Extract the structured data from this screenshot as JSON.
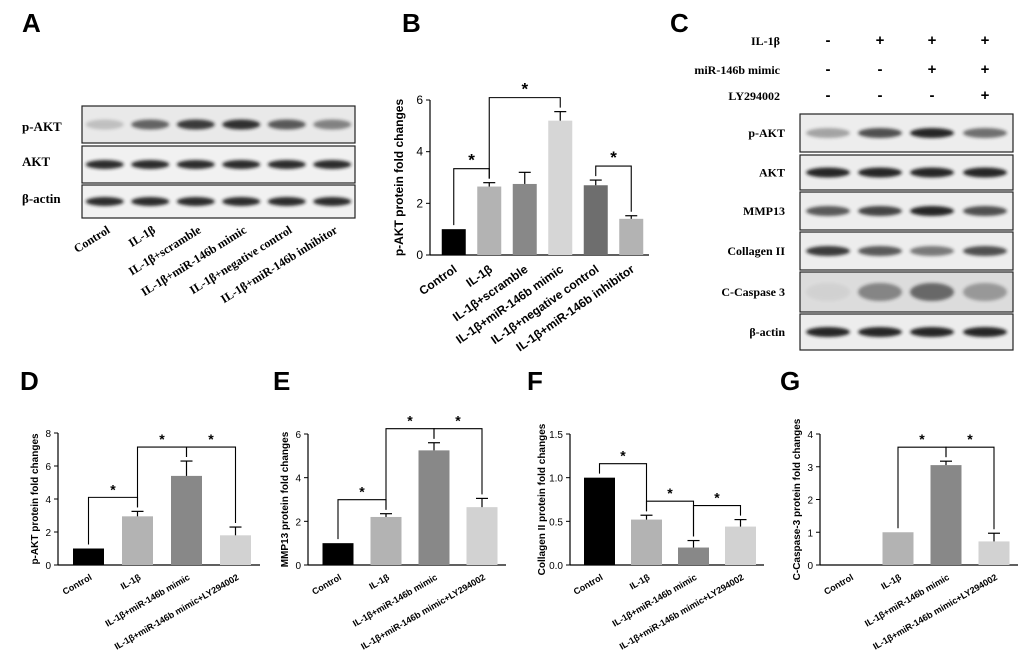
{
  "panel_letters": [
    "A",
    "B",
    "C",
    "D",
    "E",
    "F",
    "G"
  ],
  "blot_a": {
    "rows": [
      "p-AKT",
      "AKT",
      "β-actin"
    ],
    "lanes": [
      "Control",
      "IL-1β",
      "IL-1β+scramble",
      "IL-1β+miR-146b mimic",
      "IL-1β+negative control",
      "IL-1β+miR-146b inhibitor"
    ]
  },
  "blot_c": {
    "conditions": [
      {
        "label": "IL-1β",
        "marks": [
          "-",
          "+",
          "+",
          "+"
        ]
      },
      {
        "label": "miR-146b mimic",
        "marks": [
          "-",
          "-",
          "+",
          "+"
        ]
      },
      {
        "label": "LY294002",
        "marks": [
          "-",
          "-",
          "-",
          "+"
        ]
      }
    ],
    "rows": [
      "p-AKT",
      "AKT",
      "MMP13",
      "Collagen II",
      "C-Caspase 3",
      "β-actin"
    ]
  },
  "colors": {
    "black": "#000000",
    "dark_gray": "#6e6e6e",
    "mid_gray": "#888888",
    "light_gray": "#b3b3b3",
    "pale_gray": "#d2d2d2",
    "band": "#1a1a1a"
  },
  "chart_data": [
    {
      "panel": "B",
      "type": "bar",
      "categories": [
        "Control",
        "IL-1β",
        "IL-1β+scramble",
        "IL-1β+miR-146b mimic",
        "IL-1β+negative control",
        "IL-1β+miR-146b inhibitor"
      ],
      "values": [
        1.0,
        2.65,
        2.75,
        5.2,
        2.7,
        1.4
      ],
      "errors": [
        0,
        0.15,
        0.45,
        0.35,
        0.2,
        0.12
      ],
      "bar_colors": [
        "#000000",
        "#b3b3b3",
        "#888888",
        "#d6d6d6",
        "#6e6e6e",
        "#b3b3b3"
      ],
      "ylabel": "p-AKT protein fold changes",
      "ylim": [
        0,
        6
      ],
      "yticks": [
        0,
        2,
        4,
        6
      ],
      "significance": [
        [
          0,
          1
        ],
        [
          1,
          3
        ],
        [
          4,
          5
        ]
      ],
      "star": "*"
    },
    {
      "panel": "D",
      "type": "bar",
      "categories": [
        "Control",
        "IL-1β",
        "IL-1β+miR-146b mimic",
        "IL-1β+miR-146b mimic+LY294002"
      ],
      "values": [
        1.0,
        2.95,
        5.4,
        1.8
      ],
      "errors": [
        0,
        0.3,
        0.9,
        0.5
      ],
      "bar_colors": [
        "#000000",
        "#b3b3b3",
        "#888888",
        "#d2d2d2"
      ],
      "ylabel": "p-AKT protein fold changes",
      "ylim": [
        0,
        8
      ],
      "yticks": [
        0,
        2,
        4,
        6,
        8
      ],
      "significance": [
        [
          0,
          1
        ],
        [
          1,
          2
        ],
        [
          2,
          3
        ]
      ],
      "star": "*"
    },
    {
      "panel": "E",
      "type": "bar",
      "categories": [
        "Control",
        "IL-1β",
        "IL-1β+miR-146b mimic",
        "IL-1β+miR-146b mimic+LY294002"
      ],
      "values": [
        1.0,
        2.2,
        5.25,
        2.65
      ],
      "errors": [
        0,
        0.15,
        0.35,
        0.4
      ],
      "bar_colors": [
        "#000000",
        "#b3b3b3",
        "#888888",
        "#d2d2d2"
      ],
      "ylabel": "MMP13 protein fold changes",
      "ylim": [
        0,
        6
      ],
      "yticks": [
        0,
        2,
        4,
        6
      ],
      "significance": [
        [
          0,
          1
        ],
        [
          1,
          2
        ],
        [
          2,
          3
        ]
      ],
      "star": "*"
    },
    {
      "panel": "F",
      "type": "bar",
      "categories": [
        "Control",
        "IL-1β",
        "IL-1β+miR-146b mimic",
        "IL-1β+miR-146b mimic+LY294002"
      ],
      "values": [
        1.0,
        0.52,
        0.2,
        0.44
      ],
      "errors": [
        0,
        0.05,
        0.08,
        0.08
      ],
      "bar_colors": [
        "#000000",
        "#b3b3b3",
        "#888888",
        "#d2d2d2"
      ],
      "ylabel": "Collagen II protein fold changes",
      "ylim": [
        0,
        1.5
      ],
      "yticks": [
        0.0,
        0.5,
        1.0,
        1.5
      ],
      "ytick_labels": [
        "0.0",
        "0.5",
        "1.0",
        "1.5"
      ],
      "significance": [
        [
          0,
          1
        ],
        [
          1,
          2
        ],
        [
          2,
          3
        ]
      ],
      "star": "*"
    },
    {
      "panel": "G",
      "type": "bar",
      "categories": [
        "Control",
        "IL-1β",
        "IL-1β+miR-146b mimic",
        "IL-1β+miR-146b mimic+LY294002"
      ],
      "values": [
        0,
        1.0,
        3.05,
        0.72
      ],
      "errors": [
        0,
        0,
        0.12,
        0.25
      ],
      "bar_colors": [
        "#000000",
        "#b3b3b3",
        "#888888",
        "#d2d2d2"
      ],
      "ylabel": "C-Caspase-3 protein fold changes",
      "ylim": [
        0,
        4
      ],
      "yticks": [
        0,
        1,
        2,
        3,
        4
      ],
      "significance": [
        [
          1,
          2
        ],
        [
          2,
          3
        ]
      ],
      "star": "*"
    }
  ]
}
